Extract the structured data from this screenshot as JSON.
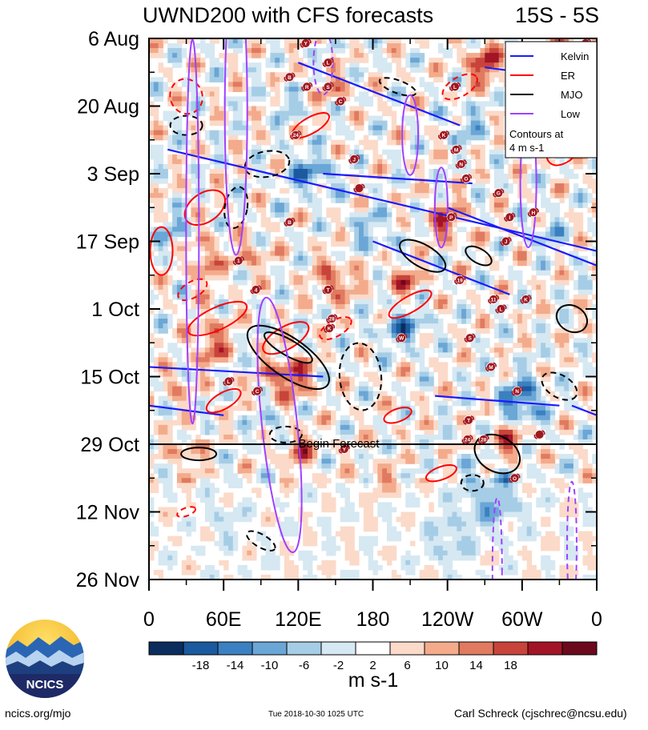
{
  "chart_data": {
    "type": "heatmap",
    "title": "UWND200 with CFS forecasts",
    "region": "15S - 5S",
    "units": "m s-1",
    "y_ticks": [
      "6 Aug",
      "20 Aug",
      "3 Sep",
      "17 Sep",
      "1 Oct",
      "15 Oct",
      "29 Oct",
      "12 Nov",
      "26 Nov"
    ],
    "x_ticks": [
      "0",
      "60E",
      "120E",
      "180",
      "120W",
      "60W",
      "0"
    ],
    "x_tick_lon": [
      0,
      60,
      120,
      180,
      240,
      300,
      360
    ],
    "y_tick_day": [
      0,
      14,
      28,
      42,
      56,
      70,
      84,
      98,
      112
    ],
    "forecast_label": "Begin Forecast",
    "forecast_day": 84,
    "colorbar": {
      "labels": [
        "-18",
        "-14",
        "-10",
        "-6",
        "-2",
        "2",
        "6",
        "10",
        "14",
        "18"
      ],
      "colors": [
        "#0a2d5e",
        "#1b5a9e",
        "#3b80c0",
        "#6aa6d6",
        "#a6cde6",
        "#d6e8f2",
        "#ffffff",
        "#fbdac9",
        "#f3ab8c",
        "#e07a60",
        "#c8443a",
        "#a31426",
        "#6b0a1c"
      ]
    },
    "legend": {
      "position": "top-right",
      "entries": [
        {
          "label": "Kelvin",
          "color": "#1a1aff"
        },
        {
          "label": "ER",
          "color": "#ff0000"
        },
        {
          "label": "MJO",
          "color": "#000000"
        },
        {
          "label": "Low",
          "color": "#a040ff"
        }
      ],
      "note_lines": [
        "Contours at",
        "4 m s-1"
      ]
    },
    "storms": [
      {
        "lon": 126,
        "day": 1,
        "label": "Y"
      },
      {
        "lon": 351,
        "day": 1,
        "label": "K"
      },
      {
        "lon": 144,
        "day": 5,
        "label": "L"
      },
      {
        "lon": 113,
        "day": 8,
        "label": "B"
      },
      {
        "lon": 127,
        "day": 10,
        "label": "R"
      },
      {
        "lon": 144,
        "day": 10,
        "label": "S"
      },
      {
        "lon": 246,
        "day": 10,
        "label": "L"
      },
      {
        "lon": 154,
        "day": 13,
        "label": "C"
      },
      {
        "lon": 118,
        "day": 20,
        "label": "24"
      },
      {
        "lon": 237,
        "day": 20,
        "label": "K"
      },
      {
        "lon": 165,
        "day": 25,
        "label": "J"
      },
      {
        "lon": 247,
        "day": 23,
        "label": "M"
      },
      {
        "lon": 251,
        "day": 26,
        "label": "N"
      },
      {
        "lon": 255,
        "day": 29,
        "label": "O"
      },
      {
        "lon": 281,
        "day": 32,
        "label": "G"
      },
      {
        "lon": 169,
        "day": 31,
        "label": ""
      },
      {
        "lon": 243,
        "day": 37,
        "label": "P"
      },
      {
        "lon": 290,
        "day": 37,
        "label": "I"
      },
      {
        "lon": 309,
        "day": 36,
        "label": "H"
      },
      {
        "lon": 113,
        "day": 38,
        "label": "B"
      },
      {
        "lon": 287,
        "day": 42,
        "label": "J"
      },
      {
        "lon": 72,
        "day": 46,
        "label": "1"
      },
      {
        "lon": 250,
        "day": 50,
        "label": "19"
      },
      {
        "lon": 86,
        "day": 52,
        "label": "4"
      },
      {
        "lon": 144,
        "day": 52,
        "label": "T"
      },
      {
        "lon": 277,
        "day": 54,
        "label": "11"
      },
      {
        "lon": 283,
        "day": 56,
        "label": "L"
      },
      {
        "lon": 303,
        "day": 54,
        "label": "K"
      },
      {
        "lon": 147,
        "day": 58,
        "label": "28"
      },
      {
        "lon": 145,
        "day": 60,
        "label": "K"
      },
      {
        "lon": 203,
        "day": 62,
        "label": "W"
      },
      {
        "lon": 258,
        "day": 62,
        "label": "S"
      },
      {
        "lon": 275,
        "day": 68,
        "label": "M"
      },
      {
        "lon": 64,
        "day": 71,
        "label": "L"
      },
      {
        "lon": 87,
        "day": 73,
        "label": "C"
      },
      {
        "lon": 296,
        "day": 73,
        "label": "N"
      },
      {
        "lon": 257,
        "day": 79,
        "label": "T"
      },
      {
        "lon": 256,
        "day": 83,
        "label": "24"
      },
      {
        "lon": 269,
        "day": 83,
        "label": "28"
      },
      {
        "lon": 157,
        "day": 85,
        "label": "Y"
      },
      {
        "lon": 314,
        "day": 82,
        "label": ""
      },
      {
        "lon": 294,
        "day": 91,
        "label": "O"
      }
    ]
  },
  "footer": {
    "logo_text": "NCICS",
    "site": "ncics.org/mjo",
    "timestamp": "Tue 2018-10-30 1025 UTC",
    "author": "Carl Schreck (cjschrec@ncsu.edu)"
  }
}
